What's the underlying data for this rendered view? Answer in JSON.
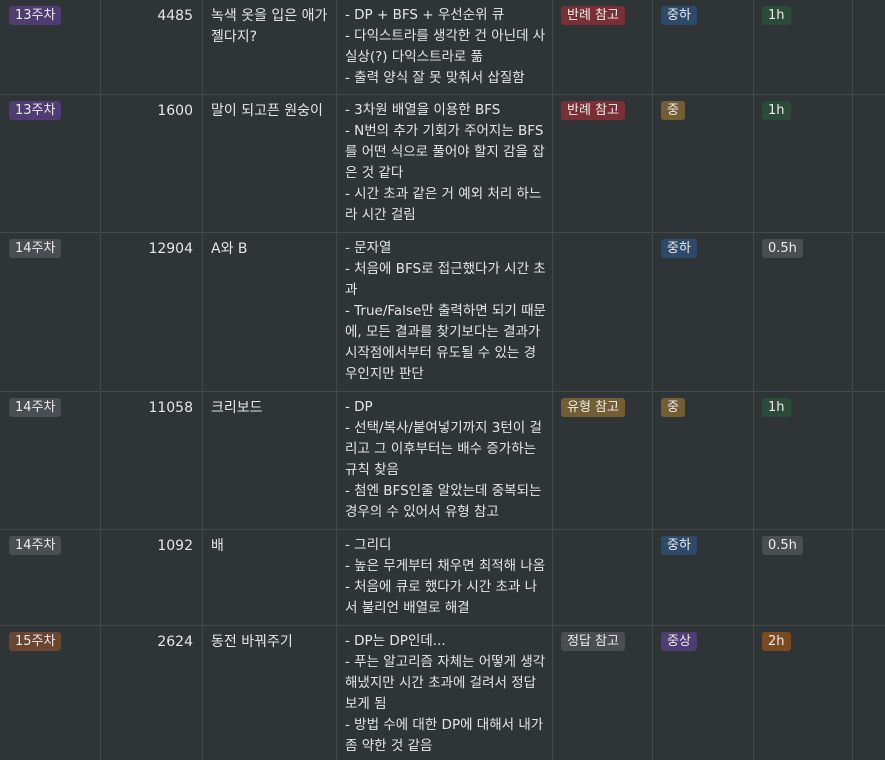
{
  "tag_colors": {
    "purple": "#4f3c72",
    "gray": "#4a4e52",
    "brown": "#6a4632",
    "red": "#7a2f35",
    "gold": "#735e33",
    "blue": "#2d4a6b",
    "green": "#2c4a3a",
    "orange": "#7a4a20"
  },
  "rows": [
    {
      "week": "13주차",
      "number": "4485",
      "name": "녹색 옷을 입은 애가 젤다지?",
      "notes": [
        "- DP + BFS + 우선순위 큐",
        "- 다익스트라를 생각한 건 아닌데 사실상(?) 다익스트라로 풂",
        "- 출력 양식 잘 못 맞춰서 삽질함"
      ],
      "reference": "반례 참고",
      "difficulty": "중하",
      "time": "1h"
    },
    {
      "week": "13주차",
      "number": "1600",
      "name": "말이 되고픈 원숭이",
      "notes": [
        "- 3차원 배열을 이용한 BFS",
        "- N번의 추가 기회가 주어지는 BFS를 어떤 식으로 풀어야 할지 감을 잡은 것 같다",
        "- 시간 초과 같은 거 예외 처리 하느라 시간 걸림"
      ],
      "reference": "반례 참고",
      "difficulty": "중",
      "time": "1h"
    },
    {
      "week": "14주차",
      "number": "12904",
      "name": "A와 B",
      "notes": [
        "- 문자열",
        "- 처음에 BFS로 접근했다가 시간 초과",
        "- True/False만 출력하면 되기 때문에, 모든 결과를 찾기보다는 결과가 시작점에서부터 유도될 수 있는 경우인지만 판단"
      ],
      "reference": "",
      "difficulty": "중하",
      "time": "0.5h"
    },
    {
      "week": "14주차",
      "number": "11058",
      "name": "크리보드",
      "notes": [
        "- DP",
        "- 선택/복사/붙여넣기까지 3턴이 걸리고 그 이후부터는 배수 증가하는 규칙 찾음",
        "- 첨엔 BFS인줄 알았는데 중복되는 경우의 수 있어서 유형 참고"
      ],
      "reference": "유형 참고",
      "difficulty": "중",
      "time": "1h"
    },
    {
      "week": "14주차",
      "number": "1092",
      "name": "배",
      "notes": [
        "- 그리디",
        "- 높은 무게부터 채우면 최적해 나옴",
        "- 처음에 큐로 했다가 시간 초과 나서 불리언 배열로 해결"
      ],
      "reference": "",
      "difficulty": "중하",
      "time": "0.5h"
    },
    {
      "week": "15주차",
      "number": "2624",
      "name": "동전 바꿔주기",
      "notes": [
        "- DP는 DP인데...",
        "- 푸는 알고리즘 자체는 어떻게 생각해냈지만 시간 초과에 걸려서 정답 보게 됨",
        "- 방법 수에 대한 DP에 대해서 내가 좀 약한 것 같음"
      ],
      "reference": "정답 참고",
      "difficulty": "중상",
      "time": "2h"
    }
  ]
}
